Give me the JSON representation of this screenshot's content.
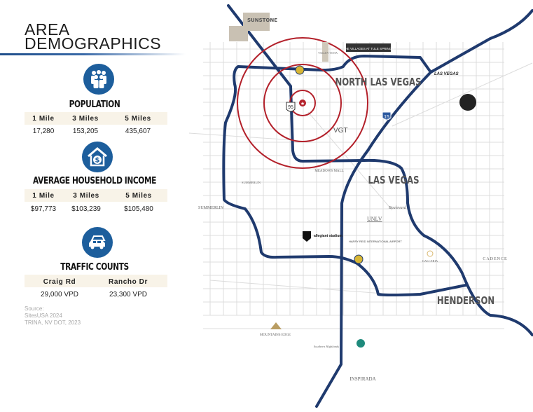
{
  "header": {
    "title_line1": "AREA",
    "title_line2": "DEMOGRAPHICS"
  },
  "population": {
    "icon": "people-group-icon",
    "title": "POPULATION",
    "headers": [
      "1 Mile",
      "3 Miles",
      "5 Miles"
    ],
    "values": [
      "17,280",
      "153,205",
      "435,607"
    ]
  },
  "income": {
    "icon": "house-dollar-icon",
    "title": "AVERAGE HOUSEHOLD INCOME",
    "headers": [
      "1 Mile",
      "3 Miles",
      "5 Miles"
    ],
    "values": [
      "$97,773",
      "$103,239",
      "$105,480"
    ]
  },
  "traffic": {
    "icon": "cars-icon",
    "title": "TRAFFIC COUNTS",
    "headers": [
      "Craig Rd",
      "Rancho Dr"
    ],
    "values": [
      "29,000 VPD",
      "23,300 VPD"
    ]
  },
  "source": {
    "label": "Source:",
    "lines": [
      "SitesUSA 2024",
      "TRINA, NV DOT, 2023"
    ]
  },
  "map": {
    "areas": [
      "NORTH LAS VEGAS",
      "LAS VEGAS",
      "HENDERSON"
    ],
    "highway_shields": [
      "95",
      "15"
    ],
    "places": [
      "SUNSTONE",
      "THE VILLAGES AT TULE SPRINGS",
      "VALLEY VISTA",
      "VGT",
      "MEADOWS MALL",
      "SUMMERLIN",
      "SUMMERLIN",
      "LAS VEGAS",
      "UNLV",
      "allegiant stadium",
      "HARRY REID INTERNATIONAL AIRPORT",
      "GALLERIA",
      "CADENCE",
      "MOUNTAINS EDGE",
      "Southern Highlands",
      "INSPIRADA",
      "Boulevard"
    ],
    "colors": {
      "highway": "#1f3a6e",
      "radius_ring": "#b3202a",
      "roads": "#d8d8d8",
      "icon_bg": "#1d5e9c",
      "band": "#f8f3e8"
    },
    "radius_rings_miles": [
      1,
      3,
      5
    ]
  }
}
